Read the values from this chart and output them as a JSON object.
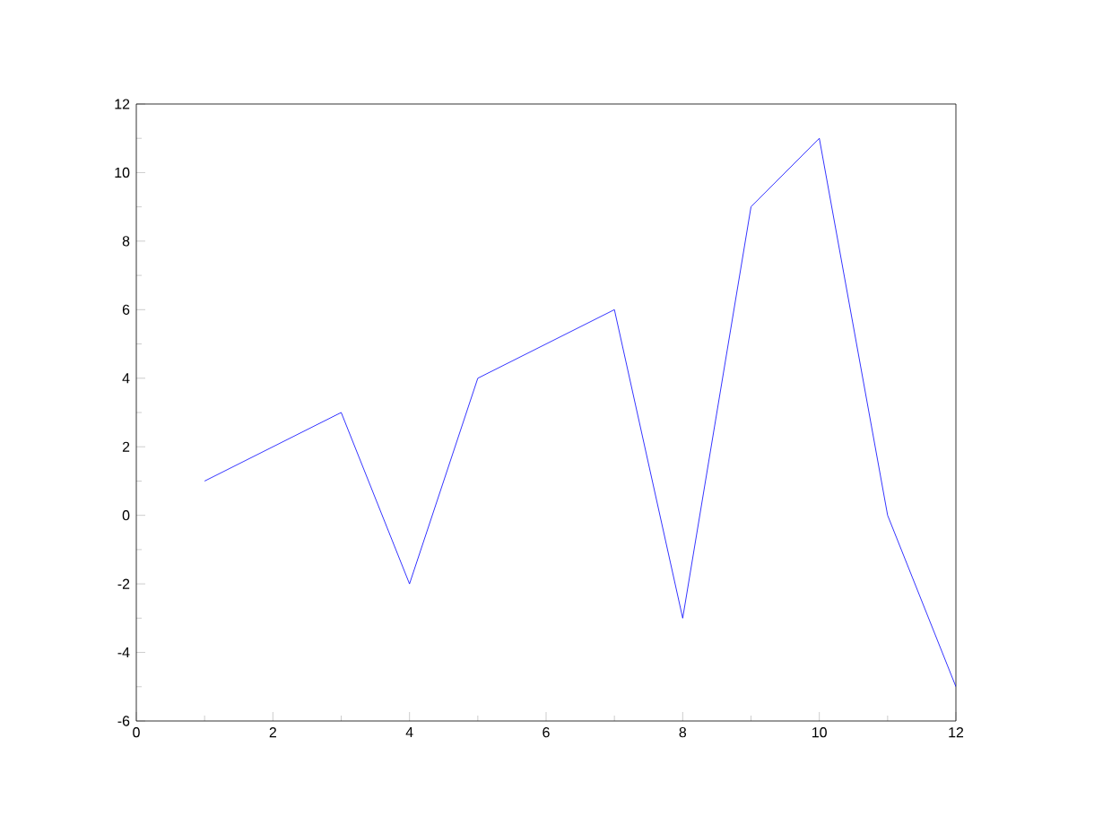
{
  "chart_data": {
    "type": "line",
    "x": [
      1,
      3,
      4,
      5,
      7,
      8,
      9,
      10,
      11,
      12
    ],
    "series": [
      {
        "color": "#0000ff",
        "values": [
          1,
          3,
          -2,
          4,
          6,
          -3,
          9,
          11,
          0,
          -5
        ]
      }
    ],
    "xlim": [
      0,
      12
    ],
    "ylim": [
      -6,
      12
    ],
    "xticks": [
      0,
      2,
      4,
      6,
      8,
      10,
      12
    ],
    "yticks": [
      -6,
      -4,
      -2,
      0,
      2,
      4,
      6,
      8,
      10,
      12
    ],
    "grid": false,
    "marker": "none",
    "line_style": "solid"
  }
}
